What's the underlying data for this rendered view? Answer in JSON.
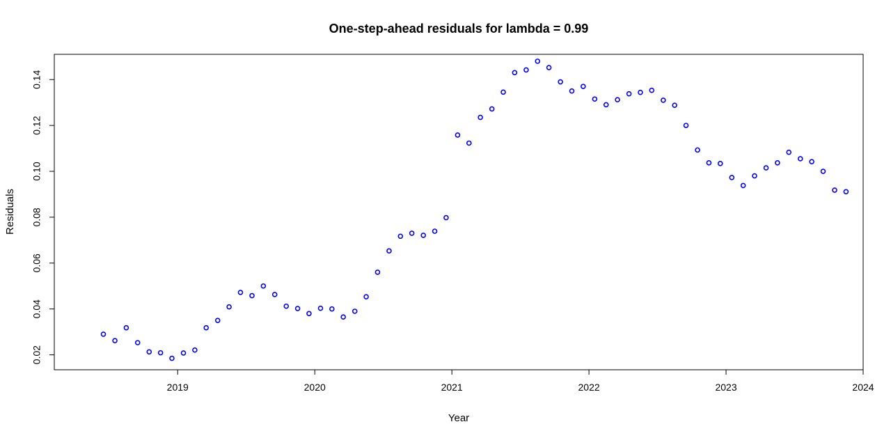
{
  "chart_data": {
    "type": "scatter",
    "title": "One-step-ahead residuals for lambda = 0.99",
    "xlabel": "Year",
    "ylabel": "Residuals",
    "xlim": [
      2018.1,
      2024.0
    ],
    "ylim": [
      0.0135,
      0.151
    ],
    "x_ticks": [
      2019,
      2020,
      2021,
      2022,
      2023,
      2024
    ],
    "x_tick_labels": [
      "2019",
      "2020",
      "2021",
      "2022",
      "2023",
      "2024"
    ],
    "y_ticks": [
      0.02,
      0.04,
      0.06,
      0.08,
      0.1,
      0.12,
      0.14
    ],
    "y_tick_labels": [
      "0.02",
      "0.04",
      "0.06",
      "0.08",
      "0.10",
      "0.12",
      "0.14"
    ],
    "grid": false,
    "marker_color": "#0000ff",
    "series": [
      {
        "points": [
          [
            2018.458,
            0.029
          ],
          [
            2018.542,
            0.0262
          ],
          [
            2018.625,
            0.0318
          ],
          [
            2018.708,
            0.0253
          ],
          [
            2018.792,
            0.0213
          ],
          [
            2018.875,
            0.0209
          ],
          [
            2018.958,
            0.0185
          ],
          [
            2019.042,
            0.0208
          ],
          [
            2019.125,
            0.0221
          ],
          [
            2019.208,
            0.0318
          ],
          [
            2019.292,
            0.035
          ],
          [
            2019.375,
            0.0409
          ],
          [
            2019.458,
            0.0472
          ],
          [
            2019.542,
            0.0458
          ],
          [
            2019.625,
            0.05
          ],
          [
            2019.708,
            0.0463
          ],
          [
            2019.792,
            0.0412
          ],
          [
            2019.875,
            0.0402
          ],
          [
            2019.958,
            0.038
          ],
          [
            2020.042,
            0.0403
          ],
          [
            2020.125,
            0.04
          ],
          [
            2020.208,
            0.0365
          ],
          [
            2020.292,
            0.039
          ],
          [
            2020.375,
            0.0453
          ],
          [
            2020.458,
            0.056
          ],
          [
            2020.542,
            0.0653
          ],
          [
            2020.625,
            0.0717
          ],
          [
            2020.708,
            0.073
          ],
          [
            2020.792,
            0.0721
          ],
          [
            2020.875,
            0.0739
          ],
          [
            2020.958,
            0.0798
          ],
          [
            2021.042,
            0.1158
          ],
          [
            2021.125,
            0.1123
          ],
          [
            2021.208,
            0.1235
          ],
          [
            2021.292,
            0.1272
          ],
          [
            2021.375,
            0.1345
          ],
          [
            2021.458,
            0.143
          ],
          [
            2021.542,
            0.1442
          ],
          [
            2021.625,
            0.148
          ],
          [
            2021.708,
            0.1452
          ],
          [
            2021.792,
            0.139
          ],
          [
            2021.875,
            0.135
          ],
          [
            2021.958,
            0.137
          ],
          [
            2022.042,
            0.1315
          ],
          [
            2022.125,
            0.129
          ],
          [
            2022.208,
            0.1312
          ],
          [
            2022.292,
            0.1338
          ],
          [
            2022.375,
            0.1344
          ],
          [
            2022.458,
            0.1353
          ],
          [
            2022.542,
            0.131
          ],
          [
            2022.625,
            0.1288
          ],
          [
            2022.708,
            0.12
          ],
          [
            2022.792,
            0.1093
          ],
          [
            2022.875,
            0.1037
          ],
          [
            2022.958,
            0.1034
          ],
          [
            2023.042,
            0.0973
          ],
          [
            2023.125,
            0.0938
          ],
          [
            2023.208,
            0.098
          ],
          [
            2023.292,
            0.1015
          ],
          [
            2023.375,
            0.1037
          ],
          [
            2023.458,
            0.1083
          ],
          [
            2023.542,
            0.1055
          ],
          [
            2023.625,
            0.1042
          ],
          [
            2023.708,
            0.1
          ],
          [
            2023.792,
            0.0918
          ],
          [
            2023.875,
            0.0911
          ]
        ]
      }
    ]
  }
}
